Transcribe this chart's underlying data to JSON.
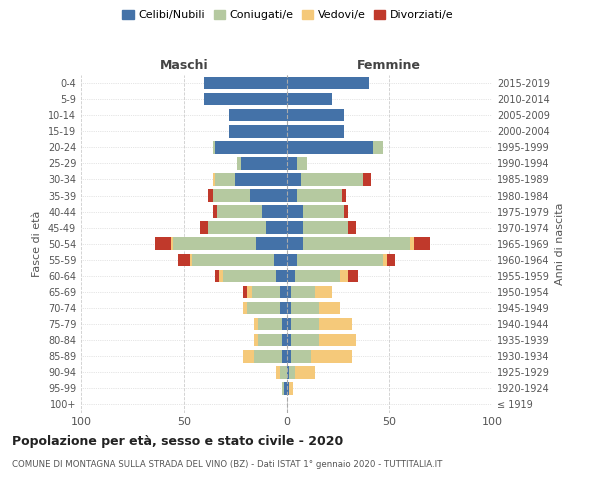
{
  "age_groups": [
    "100+",
    "95-99",
    "90-94",
    "85-89",
    "80-84",
    "75-79",
    "70-74",
    "65-69",
    "60-64",
    "55-59",
    "50-54",
    "45-49",
    "40-44",
    "35-39",
    "30-34",
    "25-29",
    "20-24",
    "15-19",
    "10-14",
    "5-9",
    "0-4"
  ],
  "birth_years": [
    "≤ 1919",
    "1920-1924",
    "1925-1929",
    "1930-1934",
    "1935-1939",
    "1940-1944",
    "1945-1949",
    "1950-1954",
    "1955-1959",
    "1960-1964",
    "1965-1969",
    "1970-1974",
    "1975-1979",
    "1980-1984",
    "1985-1989",
    "1990-1994",
    "1995-1999",
    "2000-2004",
    "2005-2009",
    "2010-2014",
    "2015-2019"
  ],
  "maschi": {
    "celibi": [
      0,
      1,
      0,
      2,
      2,
      2,
      3,
      3,
      5,
      6,
      15,
      10,
      12,
      18,
      25,
      22,
      35,
      28,
      28,
      40,
      40
    ],
    "coniugati": [
      0,
      1,
      3,
      14,
      12,
      12,
      16,
      14,
      26,
      40,
      40,
      28,
      22,
      18,
      10,
      2,
      1,
      0,
      0,
      0,
      0
    ],
    "vedovi": [
      0,
      0,
      2,
      5,
      2,
      2,
      2,
      2,
      2,
      1,
      1,
      0,
      0,
      0,
      1,
      0,
      0,
      0,
      0,
      0,
      0
    ],
    "divorziati": [
      0,
      0,
      0,
      0,
      0,
      0,
      0,
      2,
      2,
      6,
      8,
      4,
      2,
      2,
      0,
      0,
      0,
      0,
      0,
      0,
      0
    ]
  },
  "femmine": {
    "nubili": [
      0,
      1,
      1,
      2,
      2,
      2,
      2,
      2,
      4,
      5,
      8,
      8,
      8,
      5,
      7,
      5,
      42,
      28,
      28,
      22,
      40
    ],
    "coniugate": [
      0,
      0,
      3,
      10,
      14,
      14,
      14,
      12,
      22,
      42,
      52,
      22,
      20,
      22,
      30,
      5,
      5,
      0,
      0,
      0,
      0
    ],
    "vedove": [
      0,
      2,
      10,
      20,
      18,
      16,
      10,
      8,
      4,
      2,
      2,
      0,
      0,
      0,
      0,
      0,
      0,
      0,
      0,
      0,
      0
    ],
    "divorziate": [
      0,
      0,
      0,
      0,
      0,
      0,
      0,
      0,
      5,
      4,
      8,
      4,
      2,
      2,
      4,
      0,
      0,
      0,
      0,
      0,
      0
    ]
  },
  "colors": {
    "celibi": "#4472a8",
    "coniugati": "#b5c9a0",
    "vedovi": "#f5c97a",
    "divorziati": "#c0392b"
  },
  "title": "Popolazione per età, sesso e stato civile - 2020",
  "subtitle": "COMUNE DI MONTAGNA SULLA STRADA DEL VINO (BZ) - Dati ISTAT 1° gennaio 2020 - TUTTITALIA.IT",
  "ylabel_left": "Fasce di età",
  "ylabel_right": "Anni di nascita",
  "xlim": 100
}
